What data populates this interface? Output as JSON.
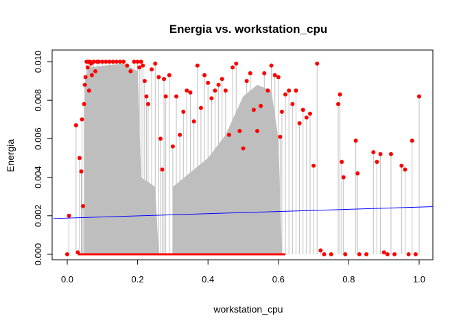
{
  "chart_data": {
    "type": "scatter",
    "title": "Energia vs. workstation_cpu",
    "xlabel": "workstation_cpu",
    "ylabel": "Energia",
    "xlim": [
      0.0,
      1.0
    ],
    "ylim": [
      0.0,
      0.01
    ],
    "x_ticks": [
      "0.0",
      "0.2",
      "0.4",
      "0.6",
      "0.8",
      "1.0"
    ],
    "y_ticks": [
      "0.000",
      "0.002",
      "0.004",
      "0.006",
      "0.008",
      "0.010"
    ],
    "grid": false,
    "legend": "none",
    "description_series": {
      "points": {
        "x": [
          0.0,
          0.005,
          0.025,
          0.03,
          0.035,
          0.04,
          0.042,
          0.045,
          0.048,
          0.05,
          0.052,
          0.055,
          0.058,
          0.06,
          0.062,
          0.065,
          0.068,
          0.07,
          0.075,
          0.08,
          0.085,
          0.09,
          0.1,
          0.11,
          0.12,
          0.13,
          0.14,
          0.15,
          0.16,
          0.17,
          0.18,
          0.19,
          0.2,
          0.205,
          0.21,
          0.215,
          0.22,
          0.225,
          0.23,
          0.24,
          0.25,
          0.26,
          0.265,
          0.27,
          0.275,
          0.28,
          0.29,
          0.3,
          0.31,
          0.32,
          0.33,
          0.34,
          0.35,
          0.36,
          0.37,
          0.38,
          0.39,
          0.4,
          0.41,
          0.42,
          0.43,
          0.44,
          0.45,
          0.46,
          0.47,
          0.48,
          0.49,
          0.5,
          0.51,
          0.52,
          0.53,
          0.54,
          0.55,
          0.56,
          0.57,
          0.58,
          0.59,
          0.6,
          0.605,
          0.61,
          0.62,
          0.63,
          0.64,
          0.65,
          0.66,
          0.67,
          0.68,
          0.69,
          0.7,
          0.71,
          0.72,
          0.73,
          0.75,
          0.77,
          0.775,
          0.78,
          0.785,
          0.79,
          0.82,
          0.825,
          0.83,
          0.85,
          0.87,
          0.88,
          0.89,
          0.9,
          0.91,
          0.92,
          0.93,
          0.95,
          0.96,
          0.97,
          0.98,
          0.99,
          1.0
        ],
        "y": [
          0.0,
          0.002,
          0.0067,
          0.0001,
          0.005,
          0.0043,
          0.007,
          0.0025,
          0.0078,
          0.0088,
          0.0092,
          0.01,
          0.0097,
          0.01,
          0.0085,
          0.01,
          0.0099,
          0.0093,
          0.01,
          0.0095,
          0.01,
          0.01,
          0.01,
          0.01,
          0.01,
          0.01,
          0.01,
          0.01,
          0.01,
          0.0098,
          0.0095,
          0.01,
          0.01,
          0.0097,
          0.01,
          0.0098,
          0.009,
          0.0082,
          0.0078,
          0.0096,
          0.0099,
          0.0092,
          0.006,
          0.0044,
          0.0091,
          0.0082,
          0.0093,
          0.0056,
          0.0082,
          0.0062,
          0.0074,
          0.0085,
          0.0084,
          0.0069,
          0.0098,
          0.0076,
          0.0093,
          0.0089,
          0.0081,
          0.0085,
          0.0088,
          0.0091,
          0.0085,
          0.0062,
          0.0097,
          0.0099,
          0.0064,
          0.0055,
          0.009,
          0.0094,
          0.0075,
          0.0064,
          0.0077,
          0.0094,
          0.0085,
          0.0098,
          0.0093,
          0.0092,
          0.0061,
          0.0074,
          0.0083,
          0.0085,
          0.0078,
          0.0085,
          0.0068,
          0.0075,
          0.0071,
          0.0073,
          0.0046,
          0.0099,
          0.0002,
          0.0,
          0.0,
          0.0078,
          0.0083,
          0.0048,
          0.004,
          0.0,
          0.0059,
          0.0042,
          0.0,
          0.0,
          0.0053,
          0.0048,
          0.0052,
          0.0001,
          0.0,
          0.0052,
          0.0,
          0.0046,
          0.0044,
          0.0,
          0.0059,
          0.0,
          0.0082
        ]
      },
      "regression_line": {
        "x": [
          0.0,
          1.0
        ],
        "y": [
          0.00188,
          0.00245
        ],
        "color": "#0000ff"
      }
    },
    "colors": {
      "points": "#ff0000",
      "stems": "#bebebe",
      "fill": "#bebebe",
      "regression": "#0000ff"
    }
  }
}
